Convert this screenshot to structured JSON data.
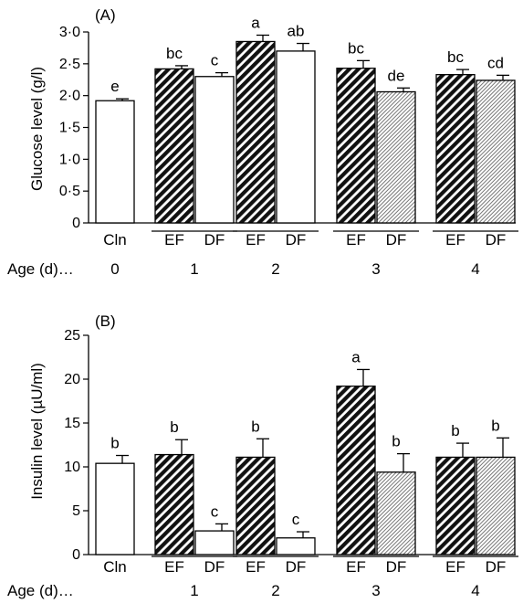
{
  "chart_data": [
    {
      "type": "bar",
      "panel_label": "(A)",
      "ylabel": "Glucose level (g/l)",
      "ylim": [
        0,
        3.0
      ],
      "yticks": [
        0,
        0.5,
        1.0,
        1.5,
        2.0,
        2.5,
        3.0
      ],
      "yticklabels": [
        "0",
        "0·5",
        "1·0",
        "1·5",
        "2·0",
        "2·5",
        "3·0"
      ],
      "age_label": "Age (d)…",
      "groups": [
        {
          "age": "0",
          "bars": [
            {
              "label": "Cln",
              "value": 1.92,
              "err": 0.03,
              "sig": "e",
              "fill": "white"
            }
          ]
        },
        {
          "age": "1",
          "bars": [
            {
              "label": "EF",
              "value": 2.42,
              "err": 0.05,
              "sig": "bc",
              "fill": "dense"
            },
            {
              "label": "DF",
              "value": 2.3,
              "err": 0.06,
              "sig": "c",
              "fill": "white"
            }
          ]
        },
        {
          "age": "2",
          "bars": [
            {
              "label": "EF",
              "value": 2.85,
              "err": 0.1,
              "sig": "a",
              "fill": "dense"
            },
            {
              "label": "DF",
              "value": 2.7,
              "err": 0.12,
              "sig": "ab",
              "fill": "white"
            }
          ]
        },
        {
          "age": "3",
          "bars": [
            {
              "label": "EF",
              "value": 2.43,
              "err": 0.12,
              "sig": "bc",
              "fill": "dense"
            },
            {
              "label": "DF",
              "value": 2.06,
              "err": 0.06,
              "sig": "de",
              "fill": "light"
            }
          ]
        },
        {
          "age": "4",
          "bars": [
            {
              "label": "EF",
              "value": 2.33,
              "err": 0.08,
              "sig": "bc",
              "fill": "dense"
            },
            {
              "label": "DF",
              "value": 2.24,
              "err": 0.08,
              "sig": "cd",
              "fill": "light"
            }
          ]
        }
      ]
    },
    {
      "type": "bar",
      "panel_label": "(B)",
      "ylabel": "Insulin level (µU/ml)",
      "ylim": [
        0,
        25
      ],
      "yticks": [
        0,
        5,
        10,
        15,
        20,
        25
      ],
      "yticklabels": [
        "0",
        "5",
        "10",
        "15",
        "20",
        "25"
      ],
      "age_label": "Age (d)…",
      "groups": [
        {
          "age": "",
          "bars": [
            {
              "label": "Cln",
              "value": 10.4,
              "err": 0.9,
              "sig": "b",
              "fill": "white"
            }
          ]
        },
        {
          "age": "1",
          "bars": [
            {
              "label": "EF",
              "value": 11.4,
              "err": 1.7,
              "sig": "b",
              "fill": "dense"
            },
            {
              "label": "DF",
              "value": 2.7,
              "err": 0.8,
              "sig": "c",
              "fill": "white"
            }
          ]
        },
        {
          "age": "2",
          "bars": [
            {
              "label": "EF",
              "value": 11.1,
              "err": 2.1,
              "sig": "b",
              "fill": "dense"
            },
            {
              "label": "DF",
              "value": 1.9,
              "err": 0.7,
              "sig": "c",
              "fill": "white"
            }
          ]
        },
        {
          "age": "3",
          "bars": [
            {
              "label": "EF",
              "value": 19.2,
              "err": 1.9,
              "sig": "a",
              "fill": "dense"
            },
            {
              "label": "DF",
              "value": 9.4,
              "err": 2.1,
              "sig": "b",
              "fill": "light"
            }
          ]
        },
        {
          "age": "4",
          "bars": [
            {
              "label": "EF",
              "value": 11.1,
              "err": 1.6,
              "sig": "b",
              "fill": "dense"
            },
            {
              "label": "DF",
              "value": 11.1,
              "err": 2.2,
              "sig": "b",
              "fill": "light"
            }
          ]
        }
      ]
    }
  ]
}
